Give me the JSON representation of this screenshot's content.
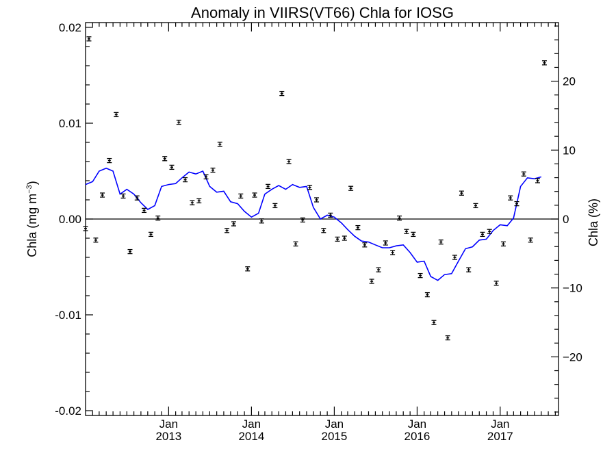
{
  "chart_data": {
    "type": "scatter",
    "title": "Anomaly in VIIRS(VT66) Chla for IOSG",
    "ylabel_left": "Chla (mg m",
    "ylabel_left_sup": "−3",
    "ylabel_left_close": ")",
    "ylabel_right": "Chla (%)",
    "ylim": [
      -0.0205,
      0.0205
    ],
    "ylim_right": [
      -28.5,
      28.5
    ],
    "xlim": [
      "2012-01-01",
      "2017-09-15"
    ],
    "left_ticks": [
      {
        "value": 0.02,
        "label": "0.02"
      },
      {
        "value": 0.01,
        "label": "0.01"
      },
      {
        "value": 0.0,
        "label": "0.00"
      },
      {
        "value": -0.01,
        "label": "-0.01"
      },
      {
        "value": -0.02,
        "label": "-0.02"
      }
    ],
    "right_ticks": [
      {
        "value": 20,
        "label": "20"
      },
      {
        "value": 10,
        "label": "10"
      },
      {
        "value": 0,
        "label": "0"
      },
      {
        "value": -10,
        "label": "−10"
      },
      {
        "value": -20,
        "label": "−20"
      }
    ],
    "x_ticks": [
      {
        "date": "2013-01-01",
        "month": "Jan",
        "year": "2013"
      },
      {
        "date": "2014-01-01",
        "month": "Jan",
        "year": "2014"
      },
      {
        "date": "2015-01-01",
        "month": "Jan",
        "year": "2015"
      },
      {
        "date": "2016-01-01",
        "month": "Jan",
        "year": "2016"
      },
      {
        "date": "2017-01-01",
        "month": "Jan",
        "year": "2017"
      }
    ],
    "zero_line": true,
    "series": [
      {
        "kind": "points_with_errorbars",
        "color": "#000000",
        "points": [
          {
            "x": "2012-01-01",
            "y": -0.001
          },
          {
            "x": "2012-01-16",
            "y": 0.0188
          },
          {
            "x": "2012-02-15",
            "y": -0.0022
          },
          {
            "x": "2012-03-15",
            "y": 0.0025
          },
          {
            "x": "2012-04-15",
            "y": 0.0061
          },
          {
            "x": "2012-05-15",
            "y": 0.0109
          },
          {
            "x": "2012-06-15",
            "y": 0.0024
          },
          {
            "x": "2012-07-15",
            "y": -0.0034
          },
          {
            "x": "2012-08-15",
            "y": 0.0022
          },
          {
            "x": "2012-09-15",
            "y": 0.0009
          },
          {
            "x": "2012-10-15",
            "y": -0.0016
          },
          {
            "x": "2012-11-15",
            "y": 0.0001
          },
          {
            "x": "2012-12-15",
            "y": 0.0063
          },
          {
            "x": "2013-01-15",
            "y": 0.0054
          },
          {
            "x": "2013-02-15",
            "y": 0.0101
          },
          {
            "x": "2013-03-15",
            "y": 0.0041
          },
          {
            "x": "2013-04-15",
            "y": 0.0017
          },
          {
            "x": "2013-05-15",
            "y": 0.0019
          },
          {
            "x": "2013-06-15",
            "y": 0.0044
          },
          {
            "x": "2013-07-15",
            "y": 0.0051
          },
          {
            "x": "2013-08-15",
            "y": 0.0078
          },
          {
            "x": "2013-09-15",
            "y": -0.0012
          },
          {
            "x": "2013-10-15",
            "y": -0.0005
          },
          {
            "x": "2013-11-15",
            "y": 0.0024
          },
          {
            "x": "2013-12-15",
            "y": -0.0052
          },
          {
            "x": "2014-01-15",
            "y": 0.0025
          },
          {
            "x": "2014-02-15",
            "y": -0.0002
          },
          {
            "x": "2014-03-15",
            "y": 0.0034
          },
          {
            "x": "2014-04-15",
            "y": 0.0014
          },
          {
            "x": "2014-05-15",
            "y": 0.0131
          },
          {
            "x": "2014-06-15",
            "y": 0.006
          },
          {
            "x": "2014-07-15",
            "y": -0.0026
          },
          {
            "x": "2014-08-15",
            "y": -0.0001
          },
          {
            "x": "2014-09-15",
            "y": 0.0033
          },
          {
            "x": "2014-10-15",
            "y": 0.002
          },
          {
            "x": "2014-11-15",
            "y": -0.0012
          },
          {
            "x": "2014-12-15",
            "y": 0.0004
          },
          {
            "x": "2015-01-15",
            "y": -0.0021
          },
          {
            "x": "2015-02-15",
            "y": -0.002
          },
          {
            "x": "2015-03-15",
            "y": 0.0032
          },
          {
            "x": "2015-04-15",
            "y": -0.0009
          },
          {
            "x": "2015-05-15",
            "y": -0.0027
          },
          {
            "x": "2015-06-15",
            "y": -0.0065
          },
          {
            "x": "2015-07-15",
            "y": -0.0053
          },
          {
            "x": "2015-08-15",
            "y": -0.0025
          },
          {
            "x": "2015-09-15",
            "y": -0.0035
          },
          {
            "x": "2015-10-15",
            "y": 0.0001
          },
          {
            "x": "2015-11-15",
            "y": -0.0013
          },
          {
            "x": "2015-12-15",
            "y": -0.0016
          },
          {
            "x": "2016-01-15",
            "y": -0.0059
          },
          {
            "x": "2016-02-15",
            "y": -0.0079
          },
          {
            "x": "2016-03-15",
            "y": -0.0108
          },
          {
            "x": "2016-04-15",
            "y": -0.0024
          },
          {
            "x": "2016-05-15",
            "y": -0.0124
          },
          {
            "x": "2016-06-15",
            "y": -0.004
          },
          {
            "x": "2016-07-15",
            "y": 0.0027
          },
          {
            "x": "2016-08-15",
            "y": -0.0053
          },
          {
            "x": "2016-09-15",
            "y": 0.0014
          },
          {
            "x": "2016-10-15",
            "y": -0.0016
          },
          {
            "x": "2016-11-15",
            "y": -0.0013
          },
          {
            "x": "2016-12-15",
            "y": -0.0067
          },
          {
            "x": "2017-01-15",
            "y": -0.0026
          },
          {
            "x": "2017-02-15",
            "y": 0.0022
          },
          {
            "x": "2017-03-15",
            "y": 0.0016
          },
          {
            "x": "2017-04-15",
            "y": 0.0047
          },
          {
            "x": "2017-05-15",
            "y": -0.0022
          },
          {
            "x": "2017-06-15",
            "y": 0.004
          },
          {
            "x": "2017-07-15",
            "y": 0.0163
          }
        ]
      },
      {
        "kind": "line",
        "color": "#0000ff",
        "points": [
          {
            "x": "2012-01-01",
            "y": 0.0036
          },
          {
            "x": "2012-02-01",
            "y": 0.0039
          },
          {
            "x": "2012-03-01",
            "y": 0.005
          },
          {
            "x": "2012-04-01",
            "y": 0.0053
          },
          {
            "x": "2012-05-01",
            "y": 0.005
          },
          {
            "x": "2012-06-01",
            "y": 0.0026
          },
          {
            "x": "2012-07-01",
            "y": 0.0031
          },
          {
            "x": "2012-08-01",
            "y": 0.0026
          },
          {
            "x": "2012-09-01",
            "y": 0.0017
          },
          {
            "x": "2012-10-01",
            "y": 0.001
          },
          {
            "x": "2012-11-01",
            "y": 0.0014
          },
          {
            "x": "2012-12-01",
            "y": 0.0034
          },
          {
            "x": "2013-01-01",
            "y": 0.0036
          },
          {
            "x": "2013-02-01",
            "y": 0.0037
          },
          {
            "x": "2013-03-01",
            "y": 0.0043
          },
          {
            "x": "2013-04-01",
            "y": 0.0049
          },
          {
            "x": "2013-05-01",
            "y": 0.0047
          },
          {
            "x": "2013-06-01",
            "y": 0.005
          },
          {
            "x": "2013-07-01",
            "y": 0.0034
          },
          {
            "x": "2013-08-01",
            "y": 0.0028
          },
          {
            "x": "2013-09-01",
            "y": 0.0029
          },
          {
            "x": "2013-10-01",
            "y": 0.0018
          },
          {
            "x": "2013-11-01",
            "y": 0.0016
          },
          {
            "x": "2013-12-01",
            "y": 0.0008
          },
          {
            "x": "2014-01-01",
            "y": 0.0002
          },
          {
            "x": "2014-02-01",
            "y": 0.0006
          },
          {
            "x": "2014-03-01",
            "y": 0.0026
          },
          {
            "x": "2014-04-01",
            "y": 0.0031
          },
          {
            "x": "2014-05-01",
            "y": 0.0035
          },
          {
            "x": "2014-06-01",
            "y": 0.0031
          },
          {
            "x": "2014-07-01",
            "y": 0.0036
          },
          {
            "x": "2014-08-01",
            "y": 0.0033
          },
          {
            "x": "2014-09-01",
            "y": 0.0034
          },
          {
            "x": "2014-10-01",
            "y": 0.0012
          },
          {
            "x": "2014-11-01",
            "y": 0.0
          },
          {
            "x": "2014-12-01",
            "y": 0.0004
          },
          {
            "x": "2015-01-01",
            "y": 0.0002
          },
          {
            "x": "2015-02-01",
            "y": -0.0004
          },
          {
            "x": "2015-03-01",
            "y": -0.0011
          },
          {
            "x": "2015-04-01",
            "y": -0.0018
          },
          {
            "x": "2015-05-01",
            "y": -0.0023
          },
          {
            "x": "2015-06-01",
            "y": -0.0024
          },
          {
            "x": "2015-07-01",
            "y": -0.0027
          },
          {
            "x": "2015-08-01",
            "y": -0.003
          },
          {
            "x": "2015-09-01",
            "y": -0.003
          },
          {
            "x": "2015-10-01",
            "y": -0.0028
          },
          {
            "x": "2015-11-01",
            "y": -0.0027
          },
          {
            "x": "2015-12-01",
            "y": -0.0035
          },
          {
            "x": "2016-01-01",
            "y": -0.0045
          },
          {
            "x": "2016-02-01",
            "y": -0.0044
          },
          {
            "x": "2016-03-01",
            "y": -0.006
          },
          {
            "x": "2016-04-01",
            "y": -0.0064
          },
          {
            "x": "2016-05-01",
            "y": -0.0058
          },
          {
            "x": "2016-06-01",
            "y": -0.0057
          },
          {
            "x": "2016-07-01",
            "y": -0.0044
          },
          {
            "x": "2016-08-01",
            "y": -0.0031
          },
          {
            "x": "2016-09-01",
            "y": -0.0029
          },
          {
            "x": "2016-10-01",
            "y": -0.0022
          },
          {
            "x": "2016-11-01",
            "y": -0.0021
          },
          {
            "x": "2016-12-01",
            "y": -0.0012
          },
          {
            "x": "2017-01-01",
            "y": -0.0006
          },
          {
            "x": "2017-02-01",
            "y": -0.0007
          },
          {
            "x": "2017-03-01",
            "y": 0.0001
          },
          {
            "x": "2017-04-01",
            "y": 0.0034
          },
          {
            "x": "2017-05-01",
            "y": 0.0043
          },
          {
            "x": "2017-06-01",
            "y": 0.0042
          },
          {
            "x": "2017-07-01",
            "y": 0.0044
          }
        ]
      }
    ]
  }
}
